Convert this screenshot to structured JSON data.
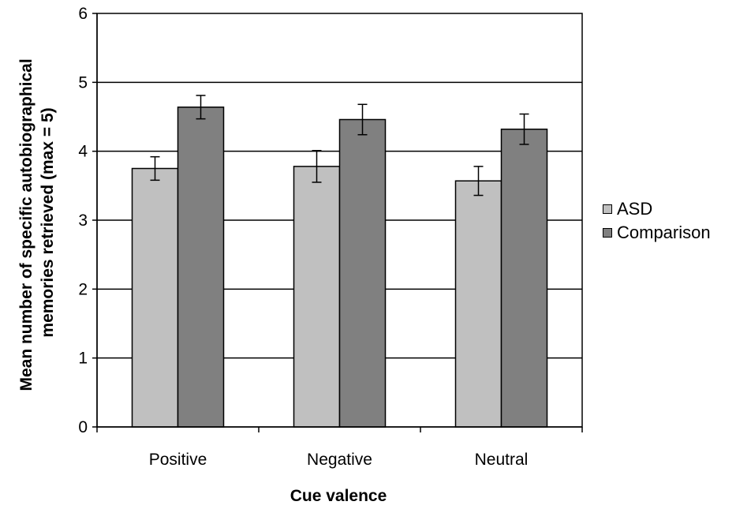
{
  "chart_data": {
    "type": "bar",
    "categories": [
      "Positive",
      "Negative",
      "Neutral"
    ],
    "series": [
      {
        "name": "ASD",
        "values": [
          3.75,
          3.78,
          3.57
        ],
        "errors": [
          0.17,
          0.23,
          0.21
        ],
        "color": "#c0c0c0"
      },
      {
        "name": "Comparison",
        "values": [
          4.64,
          4.46,
          4.32
        ],
        "errors": [
          0.17,
          0.22,
          0.22
        ],
        "color": "#808080"
      }
    ],
    "xlabel": "Cue valence",
    "ylabel_lines": [
      "Mean number of specific autobiographical",
      "memories retrieved (max = 5)"
    ],
    "ylim": [
      0,
      6
    ],
    "yticks": [
      0,
      1,
      2,
      3,
      4,
      5,
      6
    ],
    "grid": true,
    "legend_position": "right",
    "error_bars": true
  }
}
